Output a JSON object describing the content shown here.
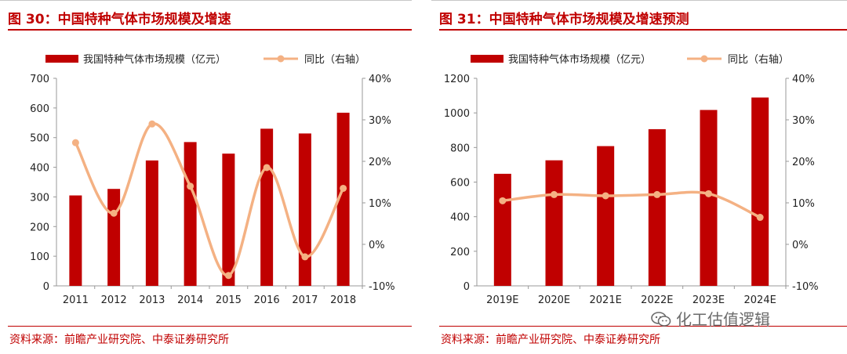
{
  "figures": [
    {
      "title": "图 30：中国特种气体市场规模及增速",
      "source": "资料来源：前瞻产业研究院、中泰证券研究所"
    },
    {
      "title": "图 31：中国特种气体市场规模及增速预测",
      "source": "资料来源：前瞻产业研究院、中泰证券研究所"
    }
  ],
  "watermark": {
    "text": "化工估值逻辑",
    "icon": "wechat-icon"
  },
  "colors": {
    "bar": "#c00000",
    "line": "#f4b183",
    "accent": "#c00000"
  },
  "chart_data": [
    {
      "type": "bar+line",
      "title": "图 30：中国特种气体市场规模及增速",
      "categories": [
        "2011",
        "2012",
        "2013",
        "2014",
        "2015",
        "2016",
        "2017",
        "2018"
      ],
      "series": [
        {
          "name": "我国特种气体市场规模（亿元）",
          "type": "bar",
          "axis": "left",
          "values": [
            305,
            327,
            423,
            485,
            446,
            530,
            514,
            584
          ]
        },
        {
          "name": "同比（右轴）",
          "type": "line",
          "axis": "right",
          "smooth": true,
          "values": [
            24.5,
            7.5,
            29.0,
            14.0,
            -7.5,
            18.5,
            -3.0,
            13.5
          ]
        }
      ],
      "y_left": {
        "min": 0,
        "max": 700,
        "step": 100,
        "ticks": [
          "0",
          "100",
          "200",
          "300",
          "400",
          "500",
          "600",
          "700"
        ]
      },
      "y_right": {
        "min": -10,
        "max": 40,
        "step": 10,
        "ticks": [
          "-10%",
          "0%",
          "10%",
          "20%",
          "30%",
          "40%"
        ]
      },
      "legend": "top"
    },
    {
      "type": "bar+line",
      "title": "图 31：中国特种气体市场规模及增速预测",
      "categories": [
        "2019E",
        "2020E",
        "2021E",
        "2022E",
        "2023E",
        "2024E"
      ],
      "series": [
        {
          "name": "我国特种气体市场规模（亿元）",
          "type": "bar",
          "axis": "left",
          "values": [
            648,
            726,
            808,
            906,
            1017,
            1089
          ]
        },
        {
          "name": "同比（右轴）",
          "type": "line",
          "axis": "right",
          "smooth": true,
          "values": [
            10.5,
            12.0,
            11.7,
            12.0,
            12.2,
            6.5
          ]
        }
      ],
      "y_left": {
        "min": 0,
        "max": 1200,
        "step": 200,
        "ticks": [
          "0",
          "200",
          "400",
          "600",
          "800",
          "1000",
          "1200"
        ]
      },
      "y_right": {
        "min": -10,
        "max": 40,
        "step": 10,
        "ticks": [
          "-10%",
          "0%",
          "10%",
          "20%",
          "30%",
          "40%"
        ]
      },
      "legend": "top"
    }
  ]
}
